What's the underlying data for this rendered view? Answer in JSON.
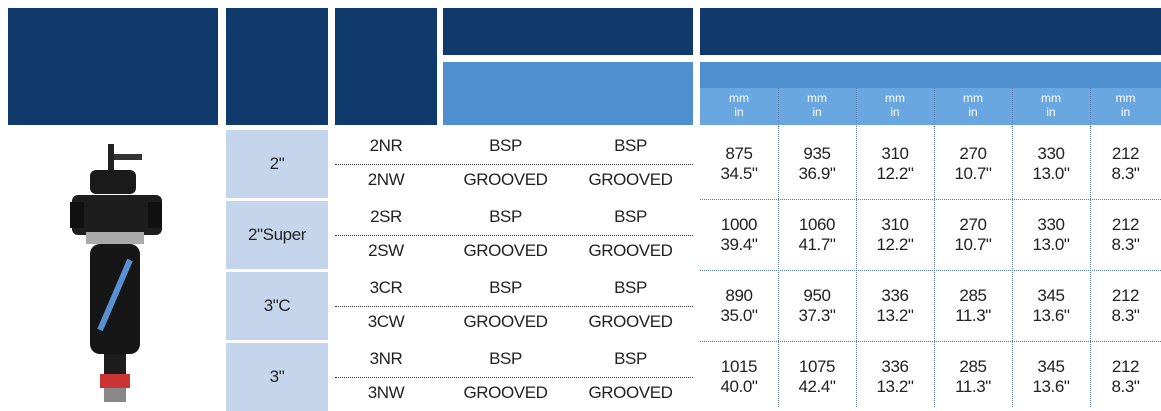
{
  "header": {
    "units": [
      [
        "mm",
        "in"
      ],
      [
        "mm",
        "in"
      ],
      [
        "mm",
        "in"
      ],
      [
        "mm",
        "in"
      ],
      [
        "mm",
        "in"
      ],
      [
        "mm",
        "in"
      ]
    ]
  },
  "table": {
    "groups": [
      {
        "size": "2\"",
        "rows": [
          [
            "2NR",
            "BSP",
            "BSP"
          ],
          [
            "2NW",
            "GROOVED",
            "GROOVED"
          ]
        ],
        "dims": [
          [
            "875",
            "34.5\""
          ],
          [
            "935",
            "36.9\""
          ],
          [
            "310",
            "12.2\""
          ],
          [
            "270",
            "10.7\""
          ],
          [
            "330",
            "13.0\""
          ],
          [
            "212",
            "8.3\""
          ]
        ]
      },
      {
        "size": "2\"Super",
        "rows": [
          [
            "2SR",
            "BSP",
            "BSP"
          ],
          [
            "2SW",
            "GROOVED",
            "GROOVED"
          ]
        ],
        "dims": [
          [
            "1000",
            "39.4\""
          ],
          [
            "1060",
            "41.7\""
          ],
          [
            "310",
            "12.2\""
          ],
          [
            "270",
            "10.7\""
          ],
          [
            "330",
            "13.0\""
          ],
          [
            "212",
            "8.3\""
          ]
        ]
      },
      {
        "size": "3\"C",
        "rows": [
          [
            "3CR",
            "BSP",
            "BSP"
          ],
          [
            "3CW",
            "GROOVED",
            "GROOVED"
          ]
        ],
        "dims": [
          [
            "890",
            "35.0\""
          ],
          [
            "950",
            "37.3\""
          ],
          [
            "336",
            "13.2\""
          ],
          [
            "285",
            "11.3\""
          ],
          [
            "345",
            "13.6\""
          ],
          [
            "212",
            "8.3\""
          ]
        ]
      },
      {
        "size": "3\"",
        "rows": [
          [
            "3NR",
            "BSP",
            "BSP"
          ],
          [
            "3NW",
            "GROOVED",
            "GROOVED"
          ]
        ],
        "dims": [
          [
            "1015",
            "40.0\""
          ],
          [
            "1075",
            "42.4\""
          ],
          [
            "336",
            "13.2\""
          ],
          [
            "285",
            "11.3\""
          ],
          [
            "345",
            "13.6\""
          ],
          [
            "212",
            "8.3\""
          ]
        ]
      }
    ]
  }
}
